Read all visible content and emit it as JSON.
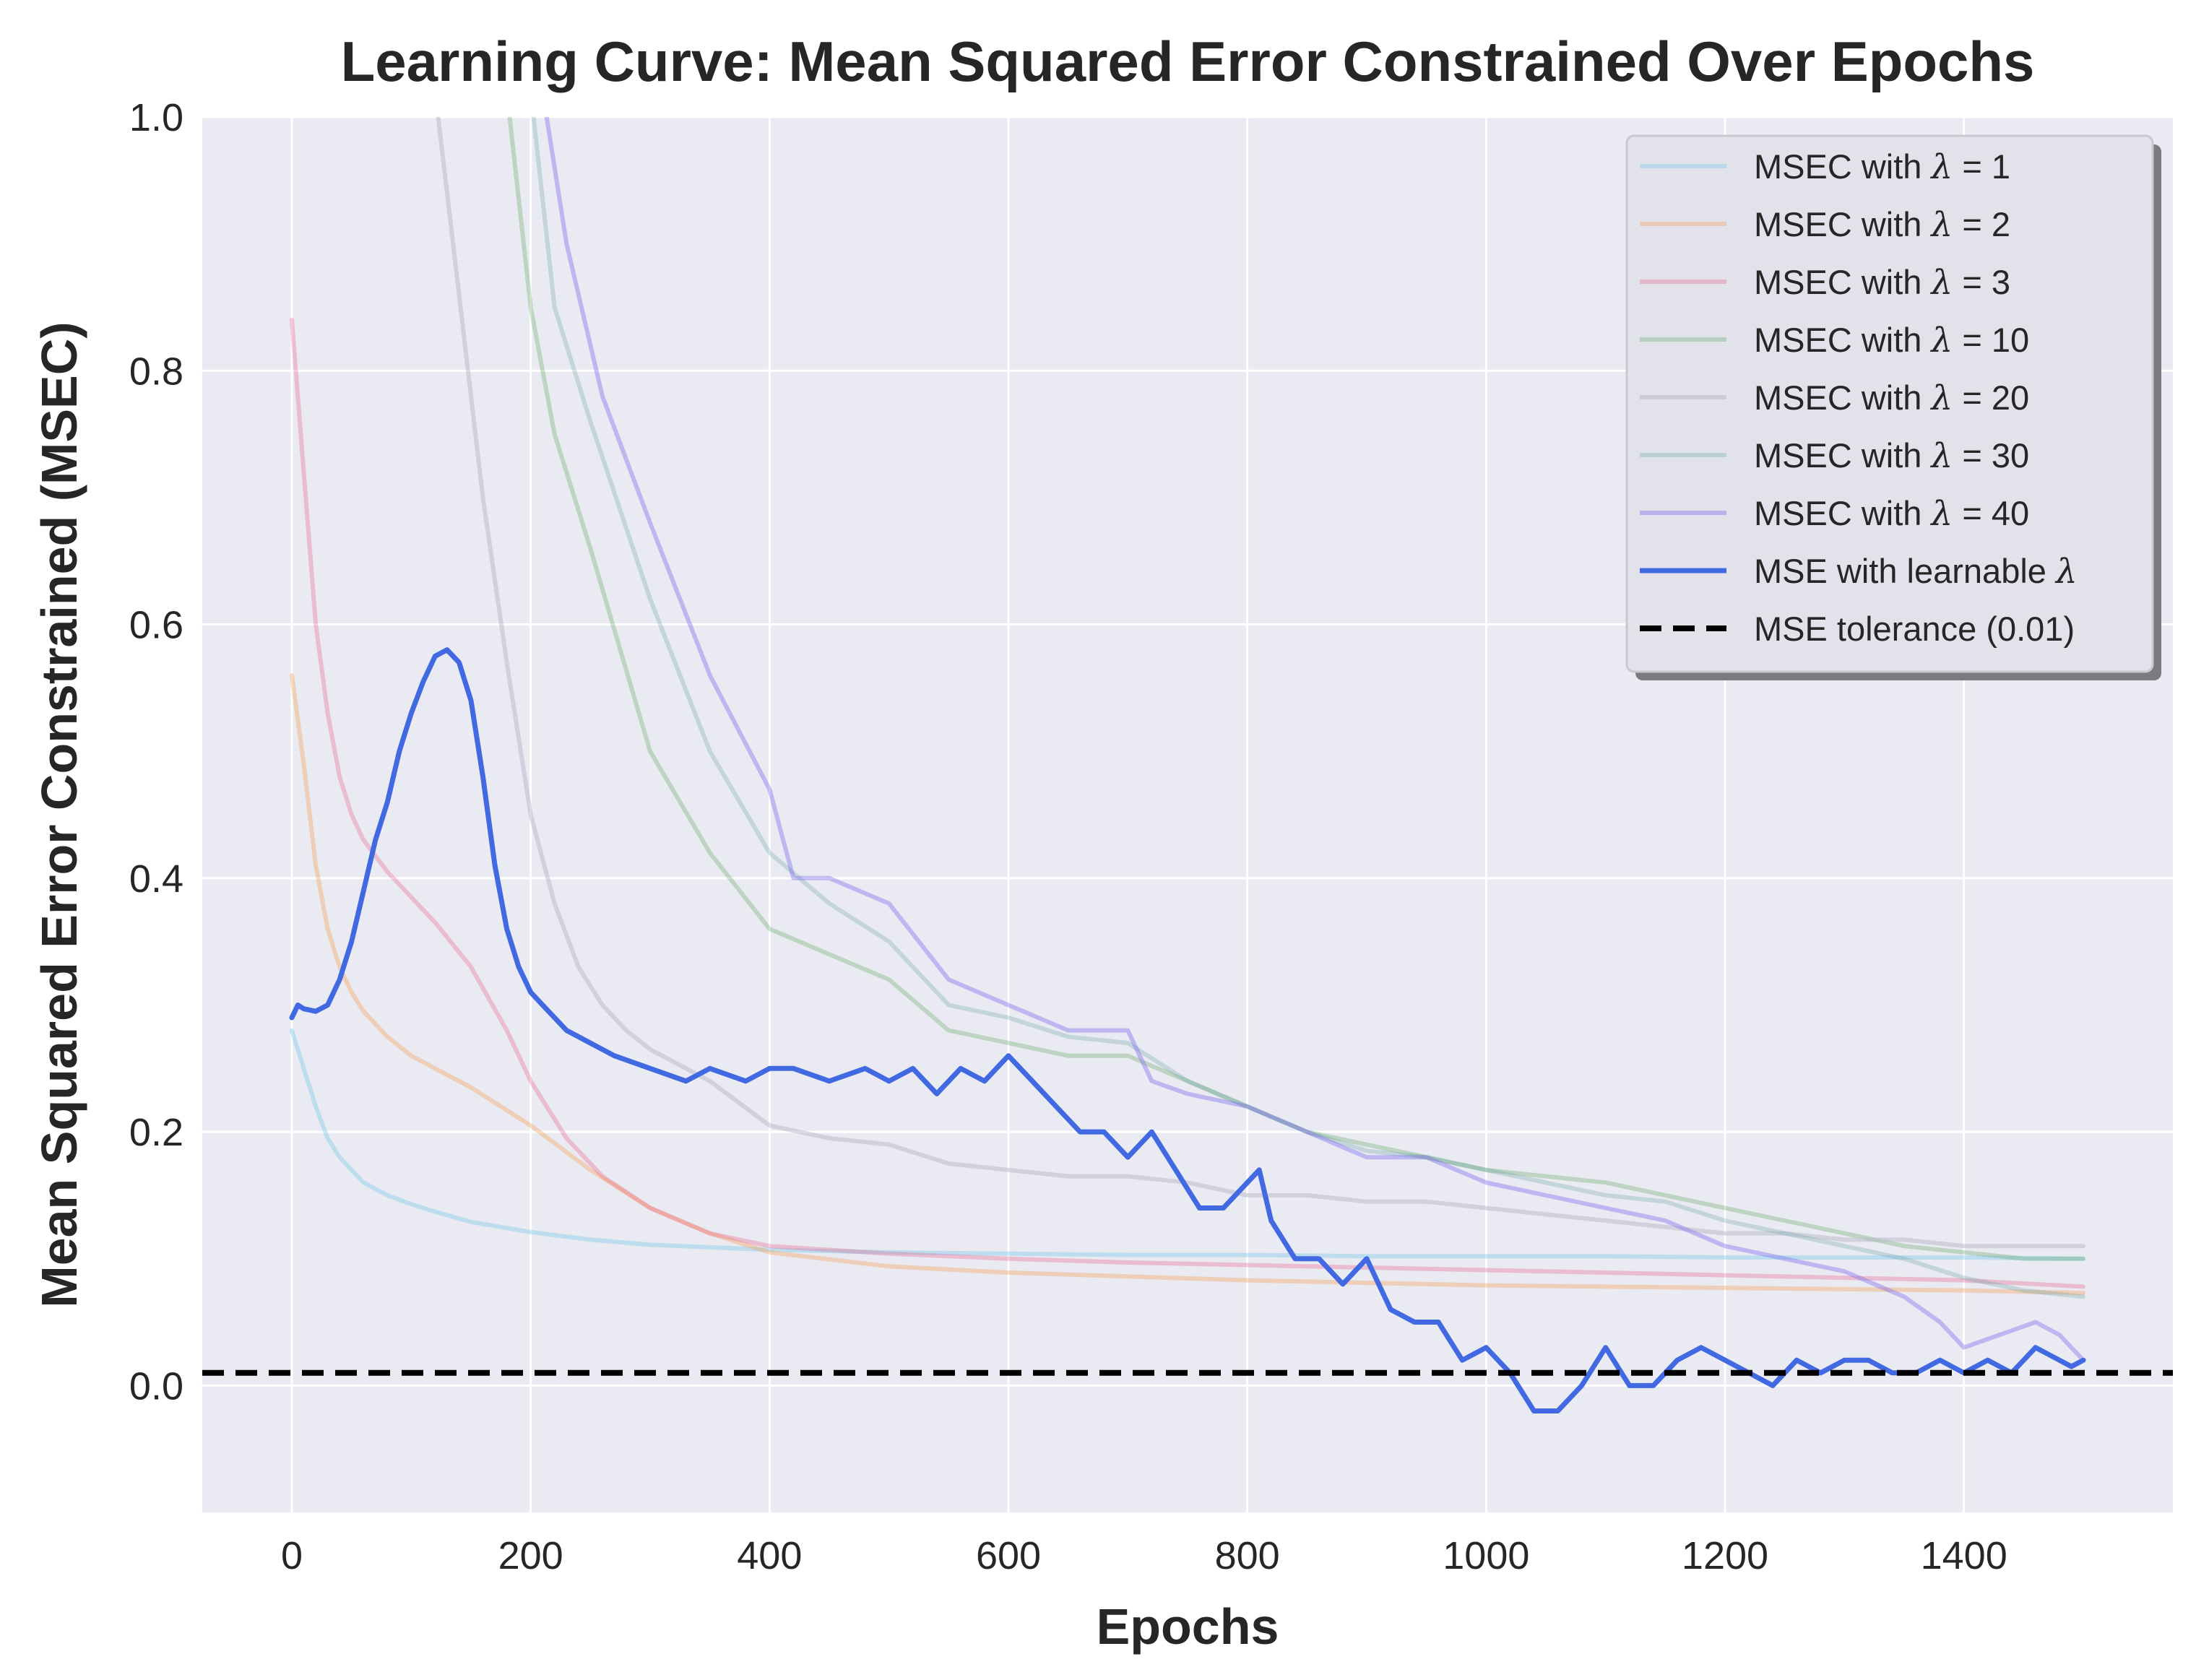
{
  "chart_data": {
    "type": "line",
    "title": "Learning Curve: Mean Squared Error Constrained Over Epochs",
    "xlabel": "Epochs",
    "ylabel": "Mean Squared Error Constrained (MSEC)",
    "xlim": [
      -75,
      1575
    ],
    "ylim": [
      -0.1,
      1.0
    ],
    "xticks": [
      0,
      200,
      400,
      600,
      800,
      1000,
      1200,
      1400
    ],
    "yticks": [
      0.0,
      0.2,
      0.4,
      0.6,
      0.8,
      1.0
    ],
    "xtick_labels": [
      "0",
      "200",
      "400",
      "600",
      "800",
      "1000",
      "1200",
      "1400"
    ],
    "ytick_labels": [
      "0.0",
      "0.2",
      "0.4",
      "0.6",
      "0.8",
      "1.0"
    ],
    "grid": true,
    "legend_position": "top-right",
    "series": [
      {
        "name": "MSEC with λ = 1",
        "legend_prefix": "MSEC with ",
        "legend_value": "= 1",
        "color": "#87ceeb",
        "alpha": 0.45,
        "width": 6,
        "dashed": false,
        "x": [
          0,
          10,
          20,
          30,
          40,
          50,
          60,
          80,
          100,
          120,
          150,
          200,
          250,
          300,
          400,
          500,
          600,
          700,
          800,
          900,
          1000,
          1100,
          1200,
          1300,
          1400,
          1500
        ],
        "y": [
          0.28,
          0.25,
          0.22,
          0.195,
          0.18,
          0.17,
          0.16,
          0.15,
          0.143,
          0.137,
          0.129,
          0.121,
          0.115,
          0.111,
          0.107,
          0.105,
          0.104,
          0.103,
          0.103,
          0.102,
          0.102,
          0.102,
          0.101,
          0.101,
          0.101,
          0.1
        ]
      },
      {
        "name": "MSEC with λ = 2",
        "legend_prefix": "MSEC with ",
        "legend_value": "= 2",
        "color": "#f4a460",
        "alpha": 0.4,
        "width": 6,
        "dashed": false,
        "x": [
          0,
          10,
          20,
          30,
          40,
          50,
          60,
          80,
          100,
          150,
          200,
          250,
          300,
          350,
          400,
          500,
          600,
          700,
          800,
          900,
          1000,
          1100,
          1200,
          1300,
          1400,
          1500
        ],
        "y": [
          0.56,
          0.49,
          0.41,
          0.36,
          0.33,
          0.31,
          0.295,
          0.275,
          0.26,
          0.235,
          0.205,
          0.17,
          0.14,
          0.12,
          0.105,
          0.094,
          0.089,
          0.086,
          0.083,
          0.081,
          0.079,
          0.078,
          0.077,
          0.076,
          0.075,
          0.073
        ]
      },
      {
        "name": "MSEC with λ = 3",
        "legend_prefix": "MSEC with ",
        "legend_value": "= 3",
        "color": "#e75480",
        "alpha": 0.3,
        "width": 6,
        "dashed": false,
        "x": [
          0,
          10,
          20,
          30,
          40,
          50,
          60,
          80,
          100,
          120,
          150,
          180,
          200,
          230,
          260,
          300,
          350,
          400,
          500,
          600,
          700,
          800,
          900,
          1000,
          1100,
          1200,
          1300,
          1400,
          1500
        ],
        "y": [
          0.84,
          0.72,
          0.6,
          0.53,
          0.48,
          0.45,
          0.43,
          0.405,
          0.385,
          0.365,
          0.33,
          0.28,
          0.24,
          0.195,
          0.165,
          0.14,
          0.12,
          0.11,
          0.104,
          0.1,
          0.097,
          0.095,
          0.093,
          0.091,
          0.089,
          0.087,
          0.085,
          0.083,
          0.078
        ]
      },
      {
        "name": "MSEC with λ = 10",
        "legend_prefix": "MSEC with ",
        "legend_value": "= 10",
        "color": "#4c9a4c",
        "alpha": 0.28,
        "width": 6,
        "dashed": false,
        "x": [
          180,
          200,
          220,
          250,
          300,
          350,
          400,
          450,
          500,
          550,
          600,
          650,
          700,
          750,
          800,
          850,
          900,
          950,
          1000,
          1050,
          1100,
          1150,
          1200,
          1250,
          1300,
          1350,
          1400,
          1450,
          1500
        ],
        "y": [
          1.02,
          0.85,
          0.75,
          0.66,
          0.5,
          0.42,
          0.36,
          0.34,
          0.32,
          0.28,
          0.27,
          0.26,
          0.26,
          0.24,
          0.22,
          0.2,
          0.19,
          0.18,
          0.17,
          0.165,
          0.16,
          0.15,
          0.14,
          0.13,
          0.12,
          0.11,
          0.105,
          0.1,
          0.1
        ]
      },
      {
        "name": "MSEC with λ = 20",
        "legend_prefix": "MSEC with ",
        "legend_value": "= 20",
        "color": "#b8b8c8",
        "alpha": 0.5,
        "width": 6,
        "dashed": false,
        "x": [
          120,
          140,
          160,
          180,
          200,
          220,
          240,
          260,
          280,
          300,
          350,
          400,
          450,
          500,
          550,
          600,
          650,
          700,
          750,
          800,
          850,
          900,
          950,
          1000,
          1050,
          1100,
          1150,
          1200,
          1250,
          1300,
          1350,
          1400,
          1450,
          1500
        ],
        "y": [
          1.02,
          0.86,
          0.7,
          0.57,
          0.45,
          0.38,
          0.33,
          0.3,
          0.28,
          0.265,
          0.24,
          0.205,
          0.195,
          0.19,
          0.175,
          0.17,
          0.165,
          0.165,
          0.16,
          0.15,
          0.15,
          0.145,
          0.145,
          0.14,
          0.135,
          0.13,
          0.125,
          0.12,
          0.12,
          0.115,
          0.115,
          0.11,
          0.11,
          0.11
        ]
      },
      {
        "name": "MSEC with λ = 30",
        "legend_prefix": "MSEC with ",
        "legend_value": "= 30",
        "color": "#5f9ea0",
        "alpha": 0.28,
        "width": 6,
        "dashed": false,
        "x": [
          200,
          220,
          250,
          300,
          350,
          400,
          450,
          500,
          550,
          600,
          650,
          700,
          750,
          800,
          850,
          900,
          950,
          1000,
          1050,
          1100,
          1150,
          1200,
          1250,
          1300,
          1350,
          1400,
          1450,
          1500
        ],
        "y": [
          1.02,
          0.85,
          0.76,
          0.62,
          0.5,
          0.42,
          0.38,
          0.35,
          0.3,
          0.29,
          0.275,
          0.27,
          0.24,
          0.22,
          0.2,
          0.185,
          0.18,
          0.17,
          0.16,
          0.15,
          0.145,
          0.13,
          0.12,
          0.11,
          0.1,
          0.085,
          0.075,
          0.07
        ]
      },
      {
        "name": "MSEC with λ = 40",
        "legend_prefix": "MSEC with ",
        "legend_value": "= 40",
        "color": "#7b68ee",
        "alpha": 0.4,
        "width": 6,
        "dashed": false,
        "x": [
          210,
          230,
          260,
          300,
          350,
          400,
          420,
          450,
          500,
          550,
          600,
          650,
          700,
          720,
          750,
          800,
          850,
          900,
          950,
          1000,
          1050,
          1100,
          1150,
          1200,
          1250,
          1300,
          1350,
          1380,
          1400,
          1430,
          1460,
          1480,
          1500
        ],
        "y": [
          1.02,
          0.9,
          0.78,
          0.68,
          0.56,
          0.47,
          0.4,
          0.4,
          0.38,
          0.32,
          0.3,
          0.28,
          0.28,
          0.24,
          0.23,
          0.22,
          0.2,
          0.18,
          0.18,
          0.16,
          0.15,
          0.14,
          0.13,
          0.11,
          0.1,
          0.09,
          0.07,
          0.05,
          0.03,
          0.04,
          0.05,
          0.04,
          0.02
        ]
      },
      {
        "name": "MSE with learnable λ",
        "legend_prefix": "MSE with learnable ",
        "legend_value": "",
        "color": "#4169e1",
        "alpha": 1.0,
        "width": 7,
        "dashed": false,
        "x": [
          0,
          5,
          10,
          20,
          30,
          40,
          50,
          60,
          70,
          80,
          90,
          100,
          110,
          120,
          130,
          140,
          150,
          160,
          170,
          180,
          190,
          200,
          210,
          230,
          250,
          270,
          300,
          330,
          350,
          380,
          400,
          420,
          450,
          480,
          500,
          520,
          540,
          560,
          580,
          600,
          620,
          640,
          660,
          680,
          700,
          720,
          740,
          760,
          780,
          800,
          810,
          820,
          840,
          860,
          880,
          900,
          920,
          940,
          960,
          980,
          1000,
          1020,
          1040,
          1060,
          1080,
          1100,
          1120,
          1140,
          1160,
          1180,
          1200,
          1220,
          1240,
          1260,
          1280,
          1300,
          1320,
          1340,
          1360,
          1380,
          1400,
          1420,
          1440,
          1460,
          1480,
          1490,
          1500
        ],
        "y": [
          0.29,
          0.3,
          0.297,
          0.295,
          0.3,
          0.32,
          0.35,
          0.39,
          0.43,
          0.46,
          0.5,
          0.53,
          0.555,
          0.575,
          0.58,
          0.57,
          0.54,
          0.48,
          0.41,
          0.36,
          0.33,
          0.31,
          0.3,
          0.28,
          0.27,
          0.26,
          0.25,
          0.24,
          0.25,
          0.24,
          0.25,
          0.25,
          0.24,
          0.25,
          0.24,
          0.25,
          0.23,
          0.25,
          0.24,
          0.26,
          0.24,
          0.22,
          0.2,
          0.2,
          0.18,
          0.2,
          0.17,
          0.14,
          0.14,
          0.16,
          0.17,
          0.13,
          0.1,
          0.1,
          0.08,
          0.1,
          0.06,
          0.05,
          0.05,
          0.02,
          0.03,
          0.01,
          -0.02,
          -0.02,
          0.0,
          0.03,
          0.0,
          0.0,
          0.02,
          0.03,
          0.02,
          0.01,
          0.0,
          0.02,
          0.01,
          0.02,
          0.02,
          0.01,
          0.01,
          0.02,
          0.01,
          0.02,
          0.01,
          0.03,
          0.02,
          0.015,
          0.02
        ]
      },
      {
        "name": "MSE tolerance (0.01)",
        "legend_prefix": "MSE tolerance (0.01)",
        "legend_value": "",
        "color": "#000000",
        "alpha": 1.0,
        "width": 8,
        "dashed": true,
        "x": [
          -75,
          1575
        ],
        "y": [
          0.01,
          0.01
        ]
      }
    ]
  }
}
